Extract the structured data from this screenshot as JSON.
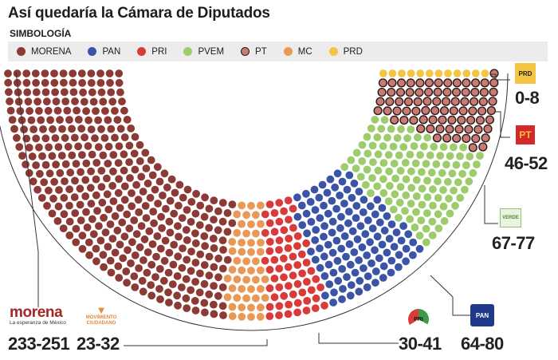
{
  "header": {
    "title": "Así quedaría la Cámara de Diputados",
    "legend_title": "SIMBOLOGÍA"
  },
  "legend": [
    {
      "label": "MORENA",
      "color": "#8c3a35"
    },
    {
      "label": "PAN",
      "color": "#3c54a6"
    },
    {
      "label": "PRI",
      "color": "#d93b3b"
    },
    {
      "label": "PVEM",
      "color": "#9ccc6c"
    },
    {
      "label": "PT",
      "color": "#c97a72",
      "outlined": true
    },
    {
      "label": "MC",
      "color": "#ea9856"
    },
    {
      "label": "PRD",
      "color": "#f4c542"
    }
  ],
  "logos": {
    "morena_name": "morena",
    "morena_tagline": "La esperanza de México",
    "mc_name": "MOVIMIENTO CIUDADANO",
    "prd": "PRD",
    "pt": "PT",
    "pvem": "VERDE",
    "pri": "PRI",
    "pan": "PAN"
  },
  "chart_data": {
    "type": "parliament",
    "title": "Así quedaría la Cámara de Diputados",
    "series": [
      {
        "name": "MORENA",
        "range": "233-251",
        "min": 233,
        "max": 251,
        "color": "#8c3a35"
      },
      {
        "name": "MC",
        "range": "23-32",
        "min": 23,
        "max": 32,
        "color": "#ea9856"
      },
      {
        "name": "PRI",
        "range": "30-41",
        "min": 30,
        "max": 41,
        "color": "#d93b3b"
      },
      {
        "name": "PAN",
        "range": "64-80",
        "min": 64,
        "max": 80,
        "color": "#3c54a6"
      },
      {
        "name": "PVEM",
        "range": "67-77",
        "min": 67,
        "max": 77,
        "color": "#9ccc6c"
      },
      {
        "name": "PT",
        "range": "46-52",
        "min": 46,
        "max": 52,
        "color": "#c97a72"
      },
      {
        "name": "PRD",
        "range": "0-8",
        "min": 0,
        "max": 8,
        "color": "#f4c542"
      }
    ]
  }
}
